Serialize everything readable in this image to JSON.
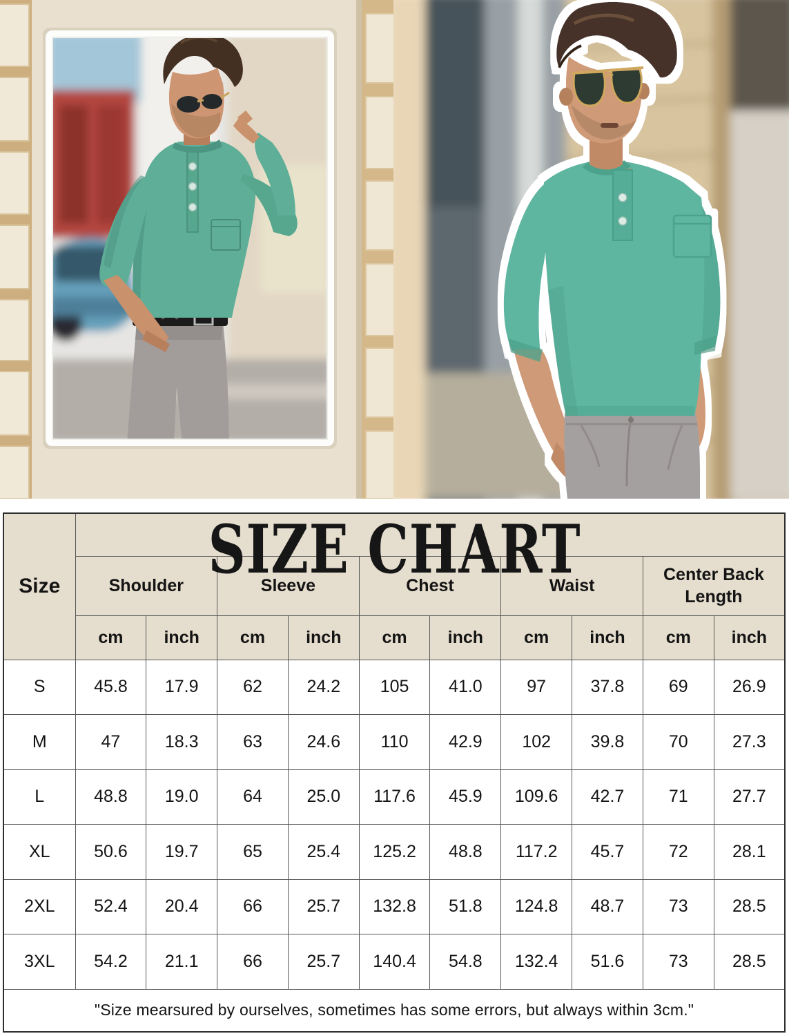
{
  "size_chart": {
    "title": "SIZE CHART",
    "corner_label": "Size",
    "groups": [
      "Shoulder",
      "Sleeve",
      "Chest",
      "Waist",
      "Center Back Length"
    ],
    "unit_labels": [
      "cm",
      "inch",
      "cm",
      "inch",
      "cm",
      "inch",
      "cm",
      "inch",
      "cm",
      "inch"
    ],
    "rows": [
      {
        "size": "S",
        "values": [
          "45.8",
          "17.9",
          "62",
          "24.2",
          "105",
          "41.0",
          "97",
          "37.8",
          "69",
          "26.9"
        ]
      },
      {
        "size": "M",
        "values": [
          "47",
          "18.3",
          "63",
          "24.6",
          "110",
          "42.9",
          "102",
          "39.8",
          "70",
          "27.3"
        ]
      },
      {
        "size": "L",
        "values": [
          "48.8",
          "19.0",
          "64",
          "25.0",
          "117.6",
          "45.9",
          "109.6",
          "42.7",
          "71",
          "27.7"
        ]
      },
      {
        "size": "XL",
        "values": [
          "50.6",
          "19.7",
          "65",
          "25.4",
          "125.2",
          "48.8",
          "117.2",
          "45.7",
          "72",
          "28.1"
        ]
      },
      {
        "size": "2XL",
        "values": [
          "52.4",
          "20.4",
          "66",
          "25.7",
          "132.8",
          "51.8",
          "124.8",
          "48.7",
          "73",
          "28.5"
        ]
      },
      {
        "size": "3XL",
        "values": [
          "54.2",
          "21.1",
          "66",
          "25.7",
          "140.4",
          "54.8",
          "132.4",
          "51.6",
          "73",
          "28.5"
        ]
      }
    ],
    "note": "\"Size mearsured by ourselves, sometimes has some errors, but always within 3cm.\""
  },
  "colors": {
    "table_header_bg": "#e5ddcd",
    "table_border": "#565656",
    "shirt_teal": "#5fb3a0",
    "pants_gray": "#a29d9b",
    "title_black": "#161616",
    "wall_cream": "#ece3d3",
    "cutout_outline": "#ffffff"
  }
}
